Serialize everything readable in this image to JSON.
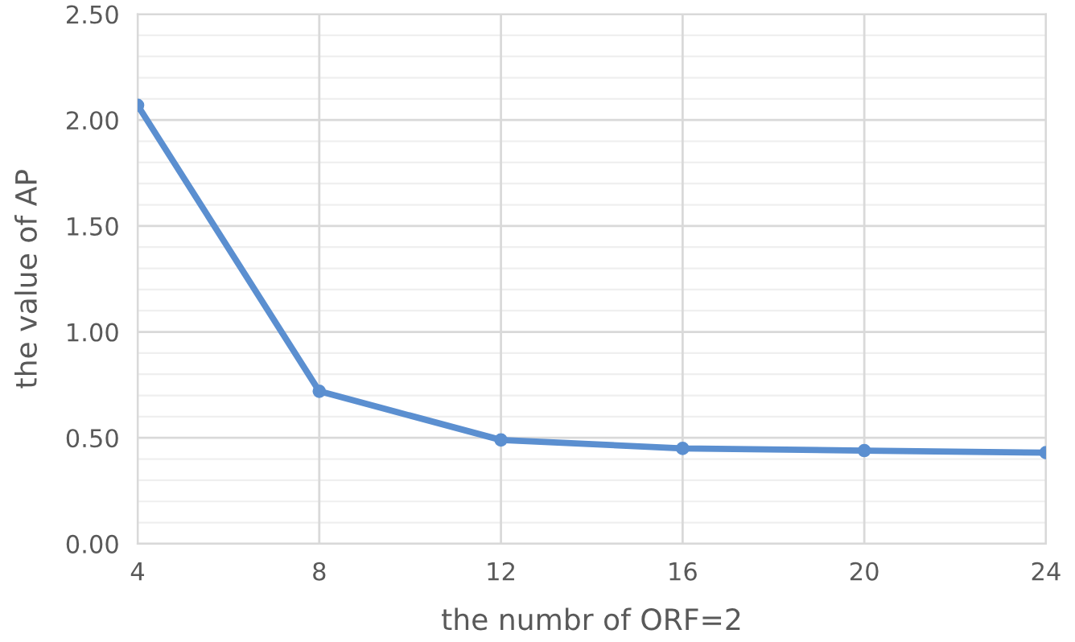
{
  "chart_data": {
    "type": "line",
    "xlabel": "the numbr of ORF=2",
    "ylabel": "the value of AP",
    "x": [
      4,
      8,
      12,
      16,
      20,
      24
    ],
    "series": [
      {
        "color": "#5b8fd0",
        "values": [
          2.07,
          0.72,
          0.49,
          0.45,
          0.44,
          0.43
        ]
      }
    ],
    "xlim": [
      4,
      24
    ],
    "xticks": [
      4,
      8,
      12,
      16,
      20,
      24
    ],
    "ylim": [
      0,
      2.5
    ],
    "yticks": [
      {
        "value": 0,
        "label": "0.00"
      },
      {
        "value": 0.5,
        "label": "0.50"
      },
      {
        "value": 1,
        "label": "1.00"
      },
      {
        "value": 1.5,
        "label": "1.50"
      },
      {
        "value": 2,
        "label": "2.00"
      },
      {
        "value": 2.5,
        "label": "2.50"
      }
    ],
    "grid": true,
    "marker": "circle",
    "line_style": "solid"
  }
}
